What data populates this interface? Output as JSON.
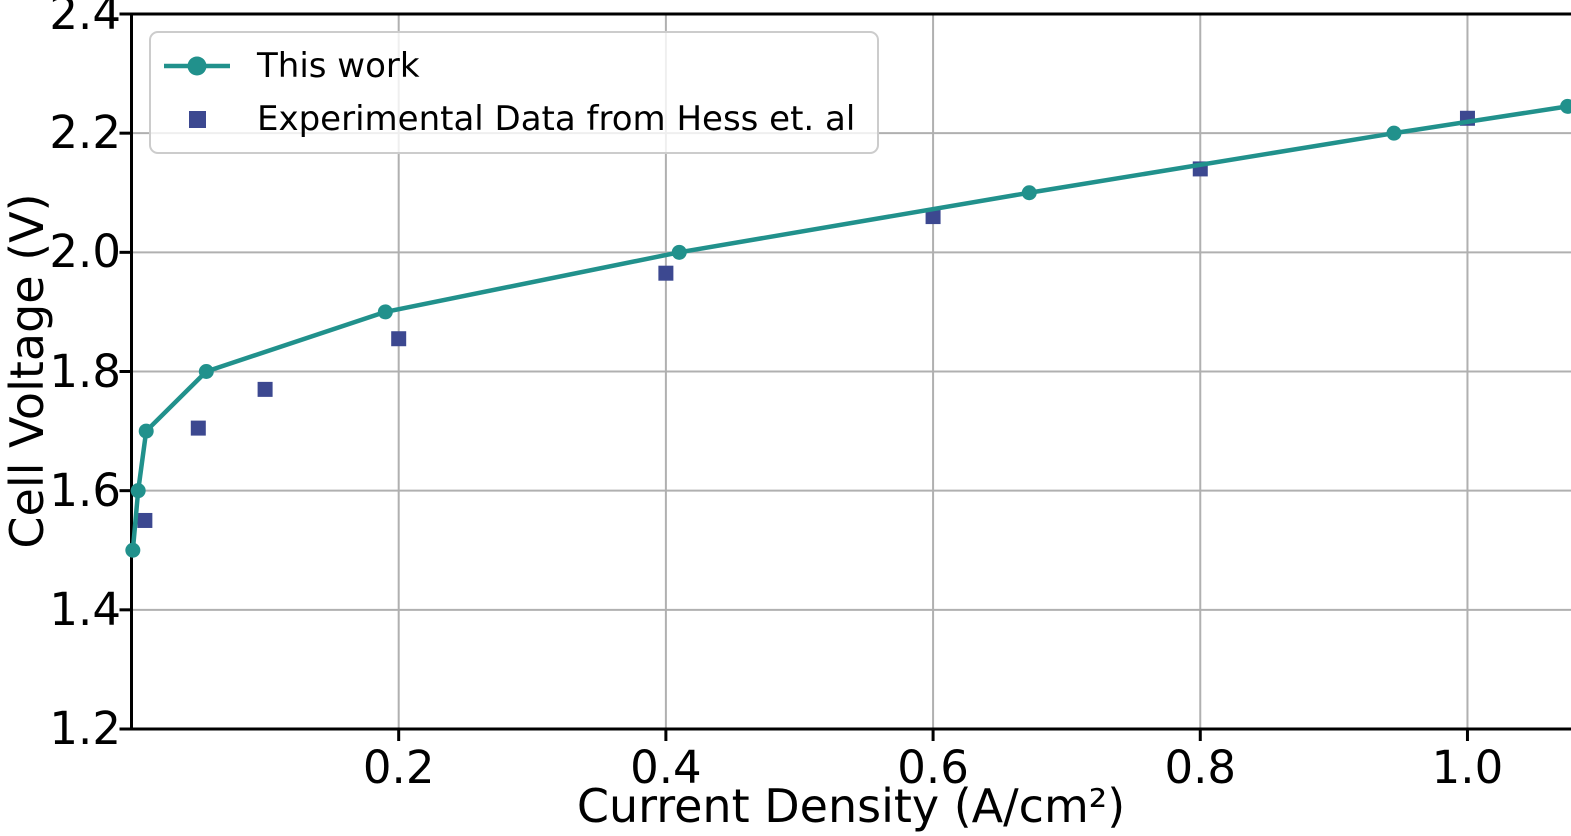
{
  "chart_data": {
    "type": "line",
    "title": "",
    "xlabel": "Current Density (A/cm²)",
    "ylabel": "Cell Voltage (V)",
    "xlim": [
      0,
      1.0775
    ],
    "ylim": [
      1.2,
      2.4
    ],
    "xticks": [
      0.2,
      0.4,
      0.6,
      0.8,
      1.0
    ],
    "yticks": [
      1.2,
      1.4,
      1.6,
      1.8,
      2.0,
      2.2,
      2.4
    ],
    "xtick_labels": [
      "0.2",
      "0.4",
      "0.6",
      "0.8",
      "1.0"
    ],
    "ytick_labels": [
      "1.2",
      "1.4",
      "1.6",
      "1.8",
      "2.0",
      "2.2",
      "2.4"
    ],
    "grid": true,
    "legend_position": "upper left",
    "series": [
      {
        "name": "This work",
        "type": "line",
        "marker": "circle",
        "color": "#21918c",
        "x": [
          0.001,
          0.005,
          0.011,
          0.056,
          0.19,
          0.41,
          0.672,
          0.945,
          1.075
        ],
        "y": [
          1.5,
          1.6,
          1.7,
          1.8,
          1.9,
          2.0,
          2.1,
          2.2,
          2.245
        ]
      },
      {
        "name": "Experimental Data from Hess et. al",
        "type": "scatter",
        "marker": "square",
        "color": "#3c4890",
        "x": [
          0.01,
          0.05,
          0.1,
          0.2,
          0.4,
          0.6,
          0.8,
          1.0
        ],
        "y": [
          1.55,
          1.705,
          1.77,
          1.855,
          1.965,
          2.06,
          2.14,
          2.225
        ]
      }
    ]
  },
  "colors": {
    "background": "#ffffff",
    "grid": "#b0b0b0",
    "axis": "#000000",
    "text": "#000000",
    "legend_border": "#cccccc"
  }
}
